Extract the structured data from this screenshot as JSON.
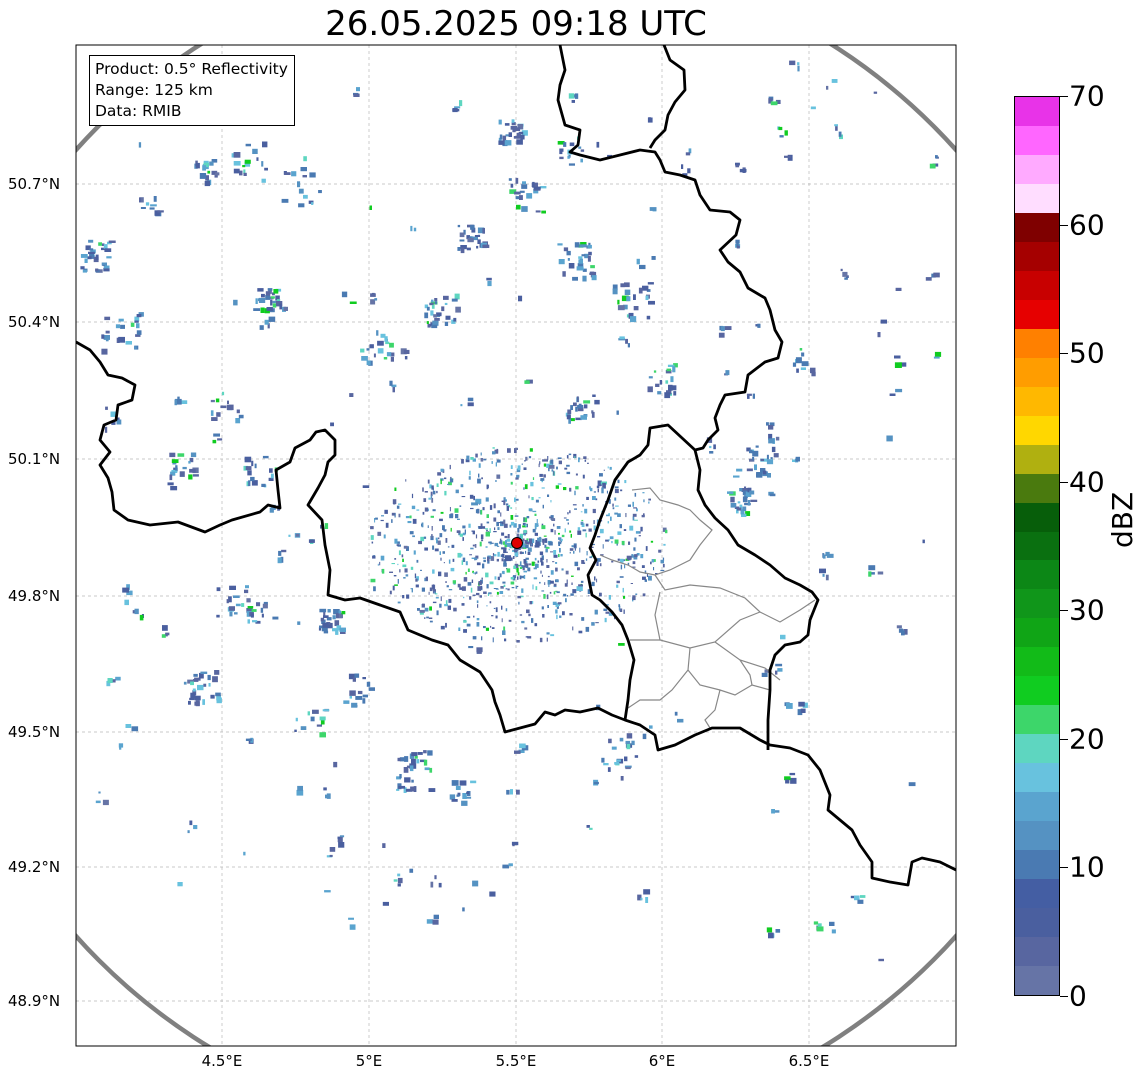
{
  "title": "26.05.2025 09:18 UTC",
  "info": {
    "product": "Product: 0.5° Reflectivity",
    "range": "Range: 125 km",
    "source": "Data: RMIB"
  },
  "axes": {
    "lat_labels": [
      "50.7°N",
      "50.4°N",
      "50.1°N",
      "49.8°N",
      "49.5°N",
      "49.2°N",
      "48.9°N"
    ],
    "lon_labels": [
      "4.5°E",
      "5°E",
      "5.5°E",
      "6°E",
      "6.5°E"
    ]
  },
  "colorbar": {
    "unit": "dBZ",
    "ticks": [
      "0",
      "10",
      "20",
      "30",
      "40",
      "50",
      "60",
      "70"
    ],
    "colors": [
      "#6674a6",
      "#5866a0",
      "#4a5f9f",
      "#445ea3",
      "#4a7ab2",
      "#5592c2",
      "#5aa4cf",
      "#68c2de",
      "#5ed6c0",
      "#3dd66a",
      "#10cc20",
      "#12bb18",
      "#10a516",
      "#10961a",
      "#0c8716",
      "#0a7010",
      "#075e0a",
      "#4a7a0e",
      "#b0b010",
      "#ffd700",
      "#ffb800",
      "#ff9d00",
      "#ff8000",
      "#e60000",
      "#c80000",
      "#a50000",
      "#7f0000",
      "#ffddff",
      "#ffaaff",
      "#ff66ff",
      "#e833e8"
    ]
  },
  "legend_colors": {
    "ring": "#808080",
    "radar_site": "#e00000",
    "border": "#000000",
    "admin": "#808080",
    "grid": "#b0b0b0"
  }
}
